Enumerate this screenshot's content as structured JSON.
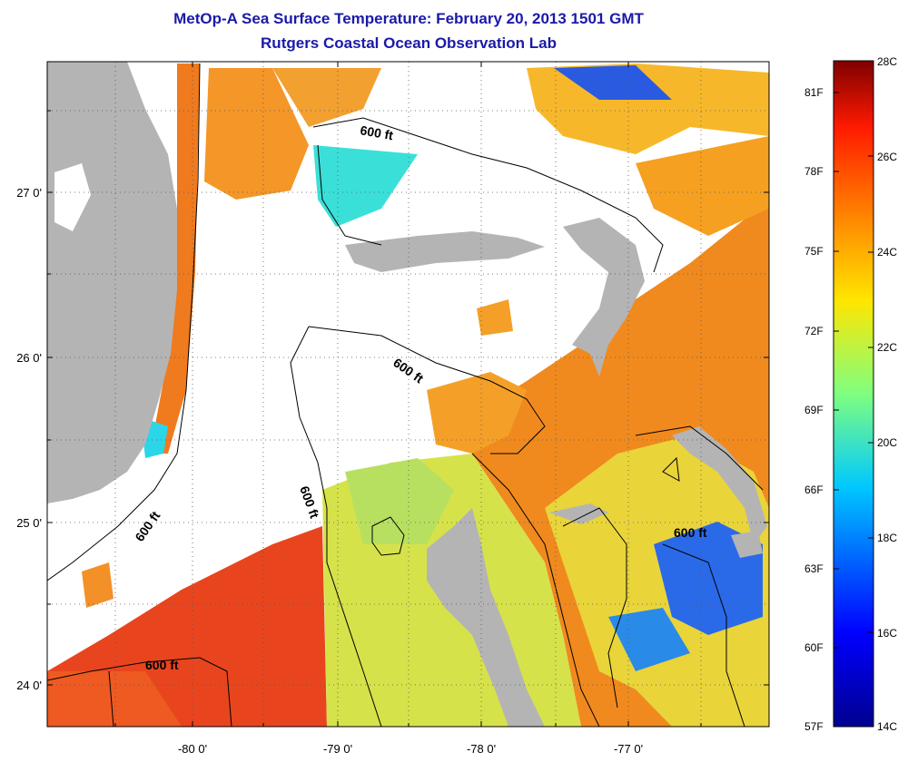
{
  "title": "MetOp-A Sea Surface Temperature:  February 20, 2013 1501 GMT",
  "subtitle": "Rutgers Coastal Ocean Observation Lab",
  "map": {
    "lon_ticks": [
      "-80 0'",
      "-79 0'",
      "-78 0'",
      "-77 0'"
    ],
    "lat_ticks": [
      "27 0'",
      "26 0'",
      "25 0'",
      "24 0'"
    ],
    "isobath_labels": [
      "600 ft",
      "600 ft",
      "600 ft",
      "600 ft",
      "600 ft",
      "600 ft"
    ]
  },
  "colorbar": {
    "f_labels": [
      "81F",
      "78F",
      "75F",
      "72F",
      "69F",
      "66F",
      "63F",
      "60F",
      "57F"
    ],
    "c_labels": [
      "28C",
      "26C",
      "24C",
      "22C",
      "20C",
      "18C",
      "16C",
      "14C"
    ]
  },
  "colors": {
    "land": "#b4b4b4",
    "warm": "#f08a1e",
    "hot": "#e83a1a",
    "mid": "#d6e84a",
    "cool": "#2ad6e8",
    "cold": "#1438c8",
    "title": "#1a1aa8"
  }
}
